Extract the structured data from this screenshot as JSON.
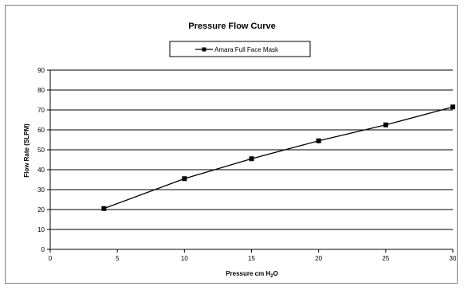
{
  "chart_data": {
    "type": "line",
    "title": "Pressure Flow Curve",
    "xlabel": "Pressure cm H2O",
    "xlabel_parts": {
      "main": "Pressure cm H",
      "sub": "2",
      "tail": "O"
    },
    "ylabel": "Flow  Rate (SLPM)",
    "xlim": [
      0,
      30
    ],
    "ylim": [
      0,
      90
    ],
    "xticks": [
      "0",
      "5",
      "10",
      "15",
      "20",
      "25",
      "30"
    ],
    "yticks": [
      "0",
      "10",
      "20",
      "30",
      "40",
      "50",
      "60",
      "70",
      "80",
      "90"
    ],
    "grid": {
      "horizontal": true,
      "vertical": false
    },
    "legend_position": "top-center",
    "series": [
      {
        "name": "Amara Full Face Mask",
        "color": "#000000",
        "marker": "square",
        "x": [
          4,
          10,
          15,
          20,
          25,
          30
        ],
        "y": [
          20.5,
          35.5,
          45.5,
          54.5,
          62.5,
          71.5
        ]
      }
    ]
  }
}
